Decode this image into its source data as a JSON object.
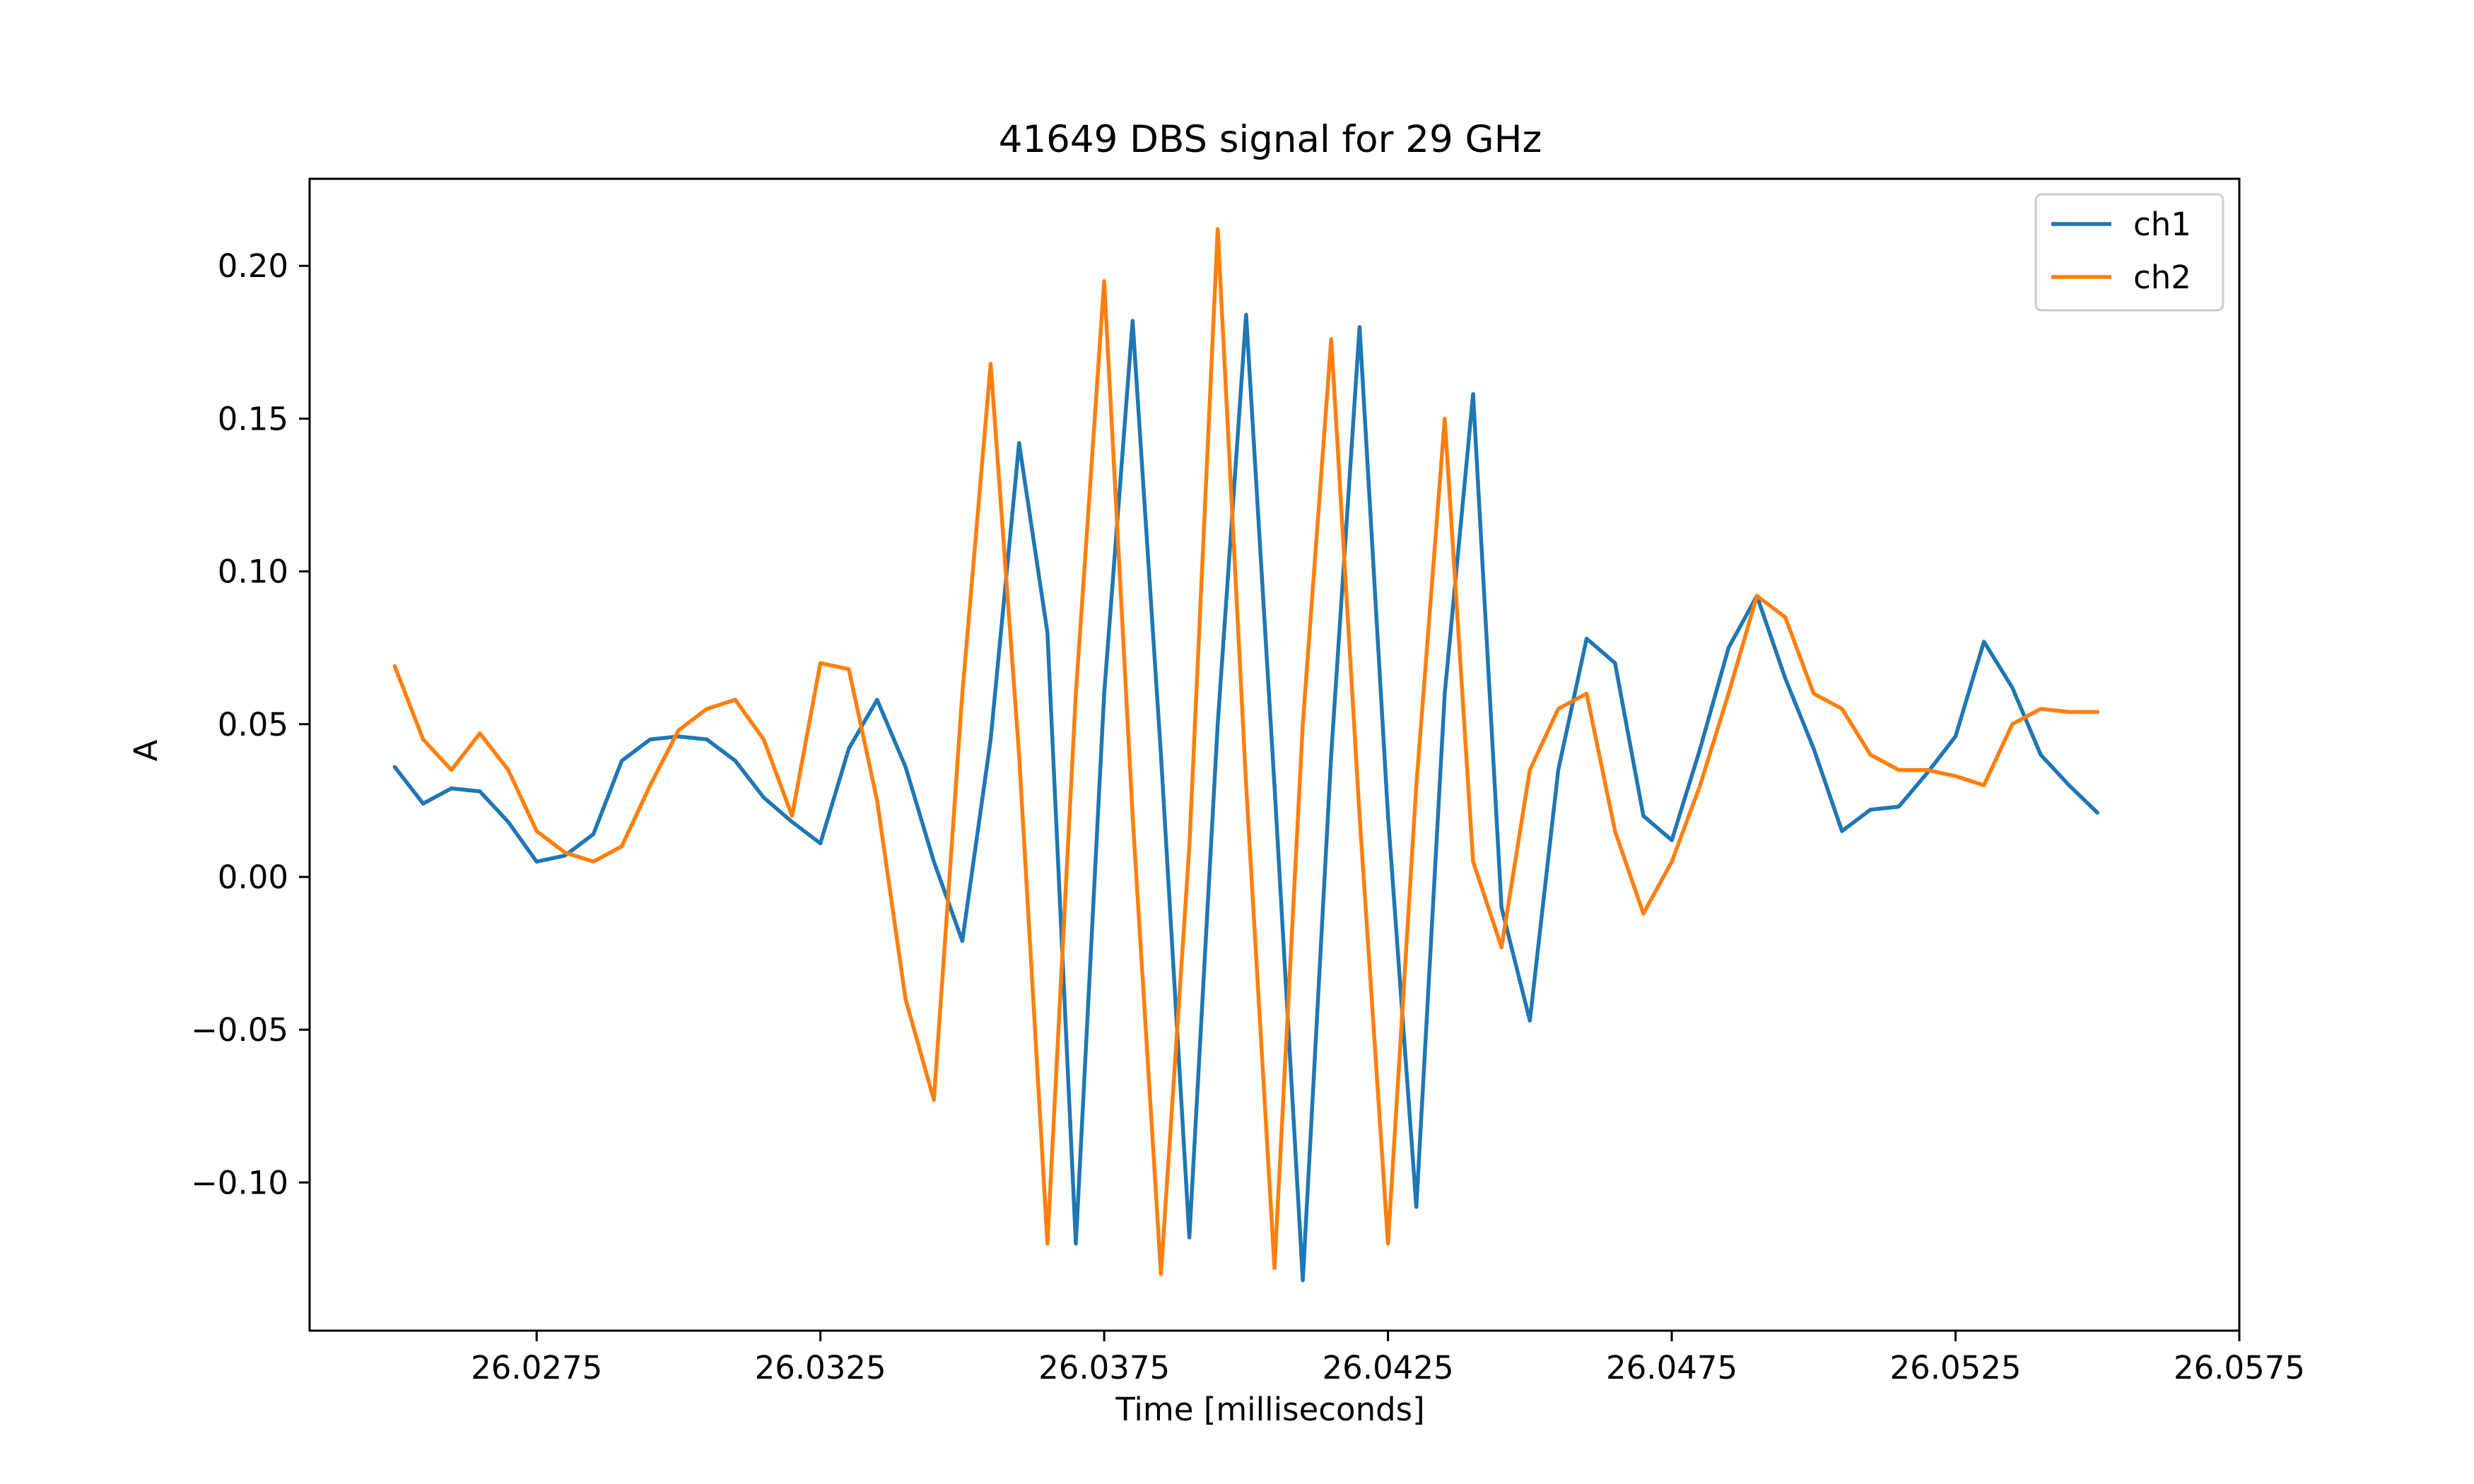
{
  "chart_data": {
    "type": "line",
    "title": "41649 DBS signal for 29 GHz",
    "xlabel": "Time [milliseconds]",
    "ylabel": "A",
    "xlim": [
      26.0235,
      26.0575
    ],
    "ylim": [
      -0.1485,
      0.2285
    ],
    "xticks": [
      26.0275,
      26.0325,
      26.0375,
      26.0425,
      26.0475,
      26.0525,
      26.0575
    ],
    "xtick_labels": [
      "26.0275",
      "26.0325",
      "26.0375",
      "26.0425",
      "26.0475",
      "26.0525",
      "26.0575"
    ],
    "yticks": [
      0.2,
      0.15,
      0.1,
      0.05,
      0.0,
      -0.05,
      -0.1
    ],
    "ytick_labels": [
      "0.20",
      "0.15",
      "0.10",
      "0.05",
      "0.00",
      "−0.05",
      "−0.10"
    ],
    "grid": false,
    "legend_position": "upper right",
    "series": [
      {
        "name": "ch1",
        "color": "#1f77b4",
        "x": [
          26.025,
          26.0255,
          26.026,
          26.0265,
          26.027,
          26.0275,
          26.028,
          26.0285,
          26.029,
          26.0295,
          26.03,
          26.0305,
          26.031,
          26.0315,
          26.032,
          26.0325,
          26.033,
          26.0335,
          26.034,
          26.0345,
          26.035,
          26.0355,
          26.036,
          26.0365,
          26.037,
          26.0375,
          26.038,
          26.0385,
          26.039,
          26.0395,
          26.04,
          26.0405,
          26.041,
          26.0415,
          26.042,
          26.0425,
          26.043,
          26.0435,
          26.044,
          26.0445,
          26.045,
          26.0455,
          26.046,
          26.0465,
          26.047,
          26.0475,
          26.048,
          26.0485,
          26.049,
          26.0495,
          26.05,
          26.0505,
          26.051,
          26.0515,
          26.052,
          26.0525,
          26.053,
          26.0535,
          26.054,
          26.0545,
          26.055
        ],
        "y": [
          0.036,
          0.024,
          0.029,
          0.028,
          0.018,
          0.005,
          0.007,
          0.014,
          0.038,
          0.045,
          0.046,
          0.045,
          0.038,
          0.026,
          0.018,
          0.011,
          0.042,
          0.058,
          0.036,
          0.005,
          -0.021,
          0.045,
          0.142,
          0.08,
          -0.12,
          0.06,
          0.182,
          0.04,
          -0.118,
          0.05,
          0.184,
          0.03,
          -0.132,
          0.04,
          0.18,
          0.02,
          -0.108,
          0.06,
          0.158,
          -0.01,
          -0.047,
          0.035,
          0.078,
          0.07,
          0.02,
          0.012,
          0.042,
          0.075,
          0.092,
          0.065,
          0.042,
          0.015,
          0.022,
          0.023,
          0.034,
          0.046,
          0.077,
          0.062,
          0.04,
          0.03,
          0.021
        ]
      },
      {
        "name": "ch2",
        "color": "#ff7f0e",
        "x": [
          26.025,
          26.0255,
          26.026,
          26.0265,
          26.027,
          26.0275,
          26.028,
          26.0285,
          26.029,
          26.0295,
          26.03,
          26.0305,
          26.031,
          26.0315,
          26.032,
          26.0325,
          26.033,
          26.0335,
          26.034,
          26.0345,
          26.035,
          26.0355,
          26.036,
          26.0365,
          26.037,
          26.0375,
          26.038,
          26.0385,
          26.039,
          26.0395,
          26.04,
          26.0405,
          26.041,
          26.0415,
          26.042,
          26.0425,
          26.043,
          26.0435,
          26.044,
          26.0445,
          26.045,
          26.0455,
          26.046,
          26.0465,
          26.047,
          26.0475,
          26.048,
          26.0485,
          26.049,
          26.0495,
          26.05,
          26.0505,
          26.051,
          26.0515,
          26.052,
          26.0525,
          26.053,
          26.0535,
          26.054,
          26.0545,
          26.055
        ],
        "y": [
          0.069,
          0.045,
          0.035,
          0.047,
          0.035,
          0.015,
          0.008,
          0.005,
          0.01,
          0.03,
          0.048,
          0.055,
          0.058,
          0.045,
          0.02,
          0.07,
          0.068,
          0.025,
          -0.04,
          -0.073,
          0.06,
          0.168,
          0.04,
          -0.12,
          0.06,
          0.195,
          0.02,
          -0.13,
          0.01,
          0.212,
          0.03,
          -0.128,
          0.05,
          0.176,
          0.02,
          -0.12,
          0.03,
          0.15,
          0.005,
          -0.023,
          0.035,
          0.055,
          0.06,
          0.015,
          -0.012,
          0.005,
          0.03,
          0.06,
          0.092,
          0.085,
          0.06,
          0.055,
          0.04,
          0.035,
          0.035,
          0.033,
          0.03,
          0.05,
          0.055,
          0.054,
          0.054
        ]
      }
    ]
  }
}
